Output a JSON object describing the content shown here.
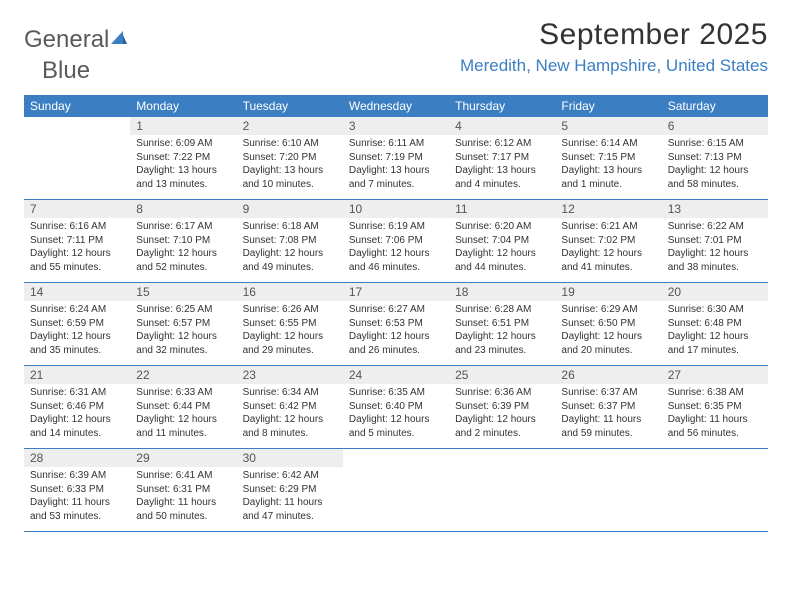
{
  "logo": {
    "text_gray": "General",
    "text_blue": "Blue"
  },
  "title": "September 2025",
  "location": "Meredith, New Hampshire, United States",
  "colors": {
    "header_bg": "#3b7ec2",
    "header_text": "#ffffff",
    "daynum_bg": "#eeeeee",
    "border": "#3b7ec2",
    "body_text": "#333333",
    "logo_gray": "#5a5a5a",
    "logo_blue": "#3b7ec2"
  },
  "day_headers": [
    "Sunday",
    "Monday",
    "Tuesday",
    "Wednesday",
    "Thursday",
    "Friday",
    "Saturday"
  ],
  "weeks": [
    [
      {
        "n": "",
        "sr": "",
        "ss": "",
        "dl": ""
      },
      {
        "n": "1",
        "sr": "Sunrise: 6:09 AM",
        "ss": "Sunset: 7:22 PM",
        "dl": "Daylight: 13 hours and 13 minutes."
      },
      {
        "n": "2",
        "sr": "Sunrise: 6:10 AM",
        "ss": "Sunset: 7:20 PM",
        "dl": "Daylight: 13 hours and 10 minutes."
      },
      {
        "n": "3",
        "sr": "Sunrise: 6:11 AM",
        "ss": "Sunset: 7:19 PM",
        "dl": "Daylight: 13 hours and 7 minutes."
      },
      {
        "n": "4",
        "sr": "Sunrise: 6:12 AM",
        "ss": "Sunset: 7:17 PM",
        "dl": "Daylight: 13 hours and 4 minutes."
      },
      {
        "n": "5",
        "sr": "Sunrise: 6:14 AM",
        "ss": "Sunset: 7:15 PM",
        "dl": "Daylight: 13 hours and 1 minute."
      },
      {
        "n": "6",
        "sr": "Sunrise: 6:15 AM",
        "ss": "Sunset: 7:13 PM",
        "dl": "Daylight: 12 hours and 58 minutes."
      }
    ],
    [
      {
        "n": "7",
        "sr": "Sunrise: 6:16 AM",
        "ss": "Sunset: 7:11 PM",
        "dl": "Daylight: 12 hours and 55 minutes."
      },
      {
        "n": "8",
        "sr": "Sunrise: 6:17 AM",
        "ss": "Sunset: 7:10 PM",
        "dl": "Daylight: 12 hours and 52 minutes."
      },
      {
        "n": "9",
        "sr": "Sunrise: 6:18 AM",
        "ss": "Sunset: 7:08 PM",
        "dl": "Daylight: 12 hours and 49 minutes."
      },
      {
        "n": "10",
        "sr": "Sunrise: 6:19 AM",
        "ss": "Sunset: 7:06 PM",
        "dl": "Daylight: 12 hours and 46 minutes."
      },
      {
        "n": "11",
        "sr": "Sunrise: 6:20 AM",
        "ss": "Sunset: 7:04 PM",
        "dl": "Daylight: 12 hours and 44 minutes."
      },
      {
        "n": "12",
        "sr": "Sunrise: 6:21 AM",
        "ss": "Sunset: 7:02 PM",
        "dl": "Daylight: 12 hours and 41 minutes."
      },
      {
        "n": "13",
        "sr": "Sunrise: 6:22 AM",
        "ss": "Sunset: 7:01 PM",
        "dl": "Daylight: 12 hours and 38 minutes."
      }
    ],
    [
      {
        "n": "14",
        "sr": "Sunrise: 6:24 AM",
        "ss": "Sunset: 6:59 PM",
        "dl": "Daylight: 12 hours and 35 minutes."
      },
      {
        "n": "15",
        "sr": "Sunrise: 6:25 AM",
        "ss": "Sunset: 6:57 PM",
        "dl": "Daylight: 12 hours and 32 minutes."
      },
      {
        "n": "16",
        "sr": "Sunrise: 6:26 AM",
        "ss": "Sunset: 6:55 PM",
        "dl": "Daylight: 12 hours and 29 minutes."
      },
      {
        "n": "17",
        "sr": "Sunrise: 6:27 AM",
        "ss": "Sunset: 6:53 PM",
        "dl": "Daylight: 12 hours and 26 minutes."
      },
      {
        "n": "18",
        "sr": "Sunrise: 6:28 AM",
        "ss": "Sunset: 6:51 PM",
        "dl": "Daylight: 12 hours and 23 minutes."
      },
      {
        "n": "19",
        "sr": "Sunrise: 6:29 AM",
        "ss": "Sunset: 6:50 PM",
        "dl": "Daylight: 12 hours and 20 minutes."
      },
      {
        "n": "20",
        "sr": "Sunrise: 6:30 AM",
        "ss": "Sunset: 6:48 PM",
        "dl": "Daylight: 12 hours and 17 minutes."
      }
    ],
    [
      {
        "n": "21",
        "sr": "Sunrise: 6:31 AM",
        "ss": "Sunset: 6:46 PM",
        "dl": "Daylight: 12 hours and 14 minutes."
      },
      {
        "n": "22",
        "sr": "Sunrise: 6:33 AM",
        "ss": "Sunset: 6:44 PM",
        "dl": "Daylight: 12 hours and 11 minutes."
      },
      {
        "n": "23",
        "sr": "Sunrise: 6:34 AM",
        "ss": "Sunset: 6:42 PM",
        "dl": "Daylight: 12 hours and 8 minutes."
      },
      {
        "n": "24",
        "sr": "Sunrise: 6:35 AM",
        "ss": "Sunset: 6:40 PM",
        "dl": "Daylight: 12 hours and 5 minutes."
      },
      {
        "n": "25",
        "sr": "Sunrise: 6:36 AM",
        "ss": "Sunset: 6:39 PM",
        "dl": "Daylight: 12 hours and 2 minutes."
      },
      {
        "n": "26",
        "sr": "Sunrise: 6:37 AM",
        "ss": "Sunset: 6:37 PM",
        "dl": "Daylight: 11 hours and 59 minutes."
      },
      {
        "n": "27",
        "sr": "Sunrise: 6:38 AM",
        "ss": "Sunset: 6:35 PM",
        "dl": "Daylight: 11 hours and 56 minutes."
      }
    ],
    [
      {
        "n": "28",
        "sr": "Sunrise: 6:39 AM",
        "ss": "Sunset: 6:33 PM",
        "dl": "Daylight: 11 hours and 53 minutes."
      },
      {
        "n": "29",
        "sr": "Sunrise: 6:41 AM",
        "ss": "Sunset: 6:31 PM",
        "dl": "Daylight: 11 hours and 50 minutes."
      },
      {
        "n": "30",
        "sr": "Sunrise: 6:42 AM",
        "ss": "Sunset: 6:29 PM",
        "dl": "Daylight: 11 hours and 47 minutes."
      },
      {
        "n": "",
        "sr": "",
        "ss": "",
        "dl": ""
      },
      {
        "n": "",
        "sr": "",
        "ss": "",
        "dl": ""
      },
      {
        "n": "",
        "sr": "",
        "ss": "",
        "dl": ""
      },
      {
        "n": "",
        "sr": "",
        "ss": "",
        "dl": ""
      }
    ]
  ]
}
